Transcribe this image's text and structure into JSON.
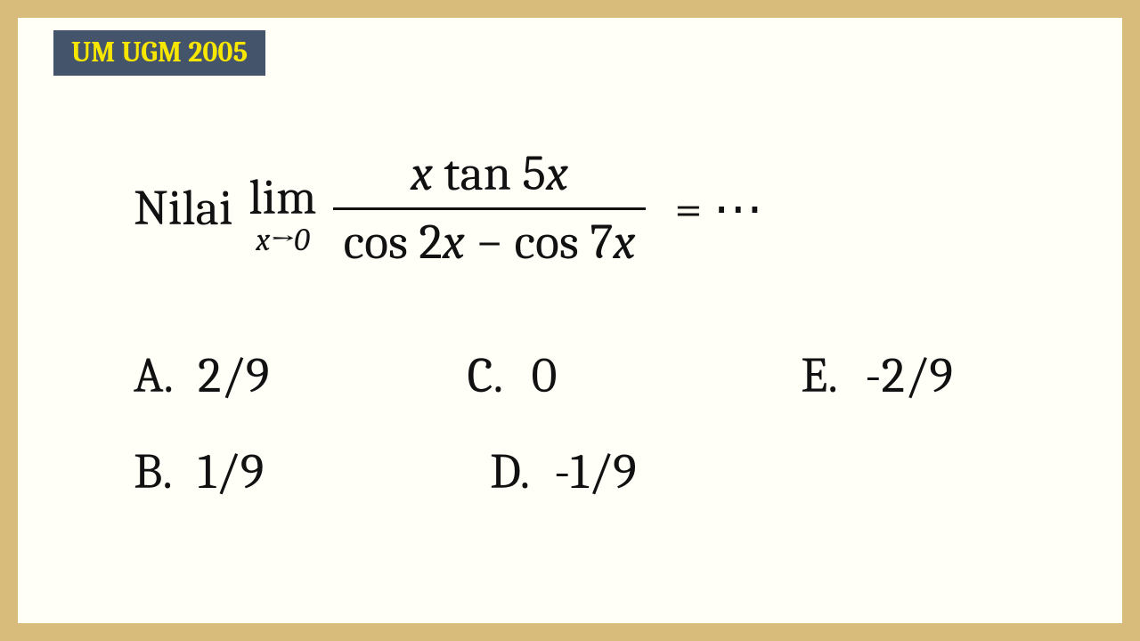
{
  "badge": {
    "text": "UM UGM 2005",
    "bg_color": "#44546a",
    "text_color": "#f7e600"
  },
  "colors": {
    "border": "#d7bc7b",
    "page_bg": "#fffff8",
    "text": "#111111"
  },
  "question": {
    "prefix": "Nilai",
    "limit_top": "lim",
    "limit_bottom_var": "x",
    "limit_bottom_arrow": "→0",
    "numerator_pre": "x",
    "numerator_fn": " tan 5",
    "numerator_post": "x",
    "denominator_pre": "cos 2",
    "denominator_mid_var": "x",
    "denominator_mid": " − cos 7",
    "denominator_end_var": "x",
    "equals": "= ⋯"
  },
  "options": {
    "A": {
      "letter": "A.",
      "value": "2/9"
    },
    "B": {
      "letter": "B.",
      "value": "1/9"
    },
    "C": {
      "letter": "C.",
      "value": "0"
    },
    "D": {
      "letter": "D.",
      "value": "-1/9"
    },
    "E": {
      "letter": "E.",
      "value": "-2/9"
    }
  }
}
